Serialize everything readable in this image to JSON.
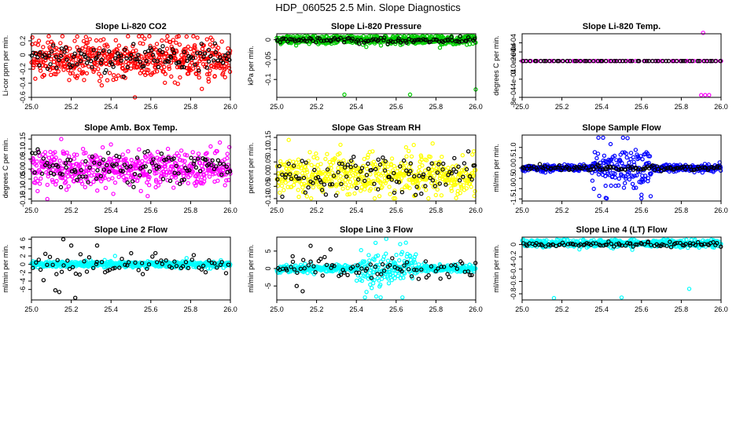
{
  "figure": {
    "title": "HDP_060525  2.5 Min. Slope Diagnostics",
    "background": "#ffffff"
  },
  "chart_data": [
    {
      "type": "scatter",
      "title": "Slope Li-820 CO2",
      "ylabel": "Li-cor ppm per min.",
      "xlim": [
        25.0,
        26.0
      ],
      "ylim": [
        -0.6,
        0.3
      ],
      "xticks": [
        25.0,
        25.2,
        25.4,
        25.6,
        25.8,
        26.0
      ],
      "yticks": [
        -0.6,
        -0.4,
        -0.2,
        0.0,
        0.2
      ],
      "series": [
        {
          "color": "#ff0000",
          "n": 520,
          "center": -0.06,
          "spread": 0.14,
          "outliers": [
            [
              25.52,
              -0.6
            ],
            [
              25.23,
              0.26
            ],
            [
              25.78,
              0.26
            ]
          ]
        },
        {
          "color": "#000000",
          "n": 120,
          "center": -0.05,
          "spread": 0.1,
          "outliers": []
        }
      ]
    },
    {
      "type": "scatter",
      "title": "Slope Li-820 Pressure",
      "ylabel": "kPa per min.",
      "xlim": [
        25.0,
        26.0
      ],
      "ylim": [
        -0.145,
        0.015
      ],
      "xticks": [
        25.0,
        25.2,
        25.4,
        25.6,
        25.8,
        26.0
      ],
      "yticks": [
        -0.1,
        -0.05,
        0.0
      ],
      "series": [
        {
          "color": "#00cc00",
          "n": 520,
          "center": 0.0,
          "spread": 0.006,
          "outliers": [
            [
              25.34,
              -0.138
            ],
            [
              25.67,
              -0.138
            ],
            [
              26.0,
              -0.125
            ],
            [
              25.45,
              -0.018
            ],
            [
              25.82,
              -0.02
            ]
          ]
        },
        {
          "color": "#000000",
          "n": 100,
          "center": -0.001,
          "spread": 0.004,
          "outliers": []
        }
      ]
    },
    {
      "type": "scatter",
      "title": "Slope Li-820 Temp.",
      "ylabel": "degrees C per min.",
      "xlim": [
        25.0,
        26.0
      ],
      "ylim": [
        -0.0008,
        0.0006
      ],
      "xticks": [
        25.0,
        25.2,
        25.4,
        25.6,
        25.8,
        26.0
      ],
      "yticks": [
        -0.0008,
        -0.0004,
        0.0,
        0.0002,
        0.0004
      ],
      "ytick_labels": [
        "-8e-04",
        "-4e-04",
        "0.0e+00",
        "2e-04",
        "4e-04"
      ],
      "series": [
        {
          "color": "#ff00ff",
          "n": 70,
          "center": 0.0,
          "spread": 0.0,
          "outliers": [
            [
              25.0,
              0.0
            ],
            [
              25.9,
              -0.00075
            ],
            [
              25.92,
              -0.00075
            ],
            [
              25.94,
              -0.00075
            ],
            [
              25.91,
              0.00062
            ]
          ]
        },
        {
          "color": "#000000",
          "n": 60,
          "center": 0.0,
          "spread": 0.0,
          "outliers": []
        }
      ]
    },
    {
      "type": "scatter",
      "title": "Slope Amb. Box Temp.",
      "ylabel": "degrees C per min.",
      "xlim": [
        25.0,
        26.0
      ],
      "ylim": [
        -0.16,
        0.17
      ],
      "xticks": [
        25.0,
        25.2,
        25.4,
        25.6,
        25.8,
        26.0
      ],
      "yticks": [
        -0.15,
        -0.1,
        -0.05,
        0.0,
        0.05,
        0.1,
        0.15
      ],
      "ytick_labels": [
        "-0.15",
        "-0.10",
        "-0.05",
        "0.00",
        "0.05",
        "0.10",
        "0.15"
      ],
      "series": [
        {
          "color": "#ff00ff",
          "n": 520,
          "center": 0.0,
          "spread": 0.045,
          "outliers": [
            [
              25.15,
              0.15
            ],
            [
              25.08,
              -0.15
            ],
            [
              25.55,
              -0.11
            ]
          ]
        },
        {
          "color": "#000000",
          "n": 110,
          "center": 0.01,
          "spread": 0.04,
          "outliers": []
        }
      ]
    },
    {
      "type": "scatter",
      "title": "Slope Gas Stream RH",
      "ylabel": "percent per min.",
      "xlim": [
        25.0,
        26.0
      ],
      "ylim": [
        -0.11,
        0.16
      ],
      "xticks": [
        25.0,
        25.2,
        25.4,
        25.6,
        25.8,
        26.0
      ],
      "yticks": [
        -0.1,
        -0.05,
        0.0,
        0.05,
        0.1,
        0.15
      ],
      "ytick_labels": [
        "-0.10",
        "-0.05",
        "0.00",
        "0.05",
        "0.10",
        "0.15"
      ],
      "series": [
        {
          "color": "#ffff00",
          "n": 520,
          "center": -0.005,
          "spread": 0.04,
          "outliers": [
            [
              25.06,
              0.14
            ],
            [
              25.32,
              0.12
            ],
            [
              25.65,
              0.11
            ]
          ]
        },
        {
          "color": "#000000",
          "n": 110,
          "center": -0.005,
          "spread": 0.04,
          "outliers": []
        }
      ]
    },
    {
      "type": "scatter",
      "title": "Slope Sample Flow",
      "ylabel": "ml/min per min.",
      "xlim": [
        25.0,
        26.0
      ],
      "ylim": [
        -1.6,
        1.6
      ],
      "xticks": [
        25.0,
        25.2,
        25.4,
        25.6,
        25.8,
        26.0
      ],
      "yticks": [
        -1.5,
        -1.0,
        -0.5,
        0.0,
        0.5,
        1.0
      ],
      "ytick_labels": [
        "-1.5",
        "-1.0",
        "-0.5",
        "0.0",
        "0.5",
        "1.0"
      ],
      "series": [
        {
          "color": "#0000ff",
          "n": 520,
          "center": 0.0,
          "spread": 0.08,
          "burst": {
            "x": [
              25.35,
              25.65
            ],
            "spread": 0.7
          },
          "outliers": [
            [
              25.53,
              1.45
            ],
            [
              25.42,
              -1.45
            ],
            [
              25.6,
              -1.3
            ]
          ]
        },
        {
          "color": "#000000",
          "n": 110,
          "center": 0.0,
          "spread": 0.06,
          "outliers": []
        }
      ]
    },
    {
      "type": "scatter",
      "title": "Slope Line 2 Flow",
      "ylabel": "ml/min per min.",
      "xlim": [
        25.0,
        26.0
      ],
      "ylim": [
        -8.5,
        6.5
      ],
      "xticks": [
        25.0,
        25.2,
        25.4,
        25.6,
        25.8,
        26.0
      ],
      "yticks": [
        -6,
        -4,
        -2,
        0,
        2,
        4,
        6
      ],
      "series": [
        {
          "color": "#00ffff",
          "n": 520,
          "center": 0.0,
          "spread": 0.35,
          "outliers": [
            [
              25.42,
              2.0
            ],
            [
              25.78,
              1.5
            ],
            [
              25.9,
              -1.0
            ]
          ]
        },
        {
          "color": "#000000",
          "n": 70,
          "center": 0.0,
          "spread": 1.4,
          "outliers": [
            [
              25.12,
              -6.2
            ],
            [
              25.14,
              -6.6
            ],
            [
              25.22,
              -8.0
            ],
            [
              25.16,
              6.0
            ],
            [
              25.2,
              4.5
            ],
            [
              25.33,
              4.5
            ],
            [
              25.07,
              2.5
            ]
          ]
        }
      ]
    },
    {
      "type": "scatter",
      "title": "Slope Line 3 Flow",
      "ylabel": "ml/min per min.",
      "xlim": [
        25.0,
        26.0
      ],
      "ylim": [
        -9,
        9
      ],
      "xticks": [
        25.0,
        25.2,
        25.4,
        25.6,
        25.8,
        26.0
      ],
      "yticks": [
        -5,
        0,
        5
      ],
      "series": [
        {
          "color": "#00ffff",
          "n": 520,
          "center": 0.0,
          "spread": 0.5,
          "burst": {
            "x": [
              25.4,
              25.7
            ],
            "spread": 3.0
          },
          "outliers": [
            [
              25.5,
              -8.0
            ],
            [
              25.55,
              8.5
            ],
            [
              25.62,
              7.0
            ]
          ]
        },
        {
          "color": "#000000",
          "n": 80,
          "center": 0.0,
          "spread": 1.6,
          "outliers": [
            [
              25.13,
              -6.5
            ],
            [
              25.1,
              -5.0
            ],
            [
              25.17,
              6.5
            ],
            [
              25.27,
              5.5
            ],
            [
              25.08,
              3.5
            ]
          ]
        }
      ]
    },
    {
      "type": "scatter",
      "title": "Slope Line 4 (LT) Flow",
      "ylabel": "ml/min per min.",
      "xlim": [
        25.0,
        26.0
      ],
      "ylim": [
        -0.9,
        0.12
      ],
      "xticks": [
        25.0,
        25.2,
        25.4,
        25.6,
        25.8,
        26.0
      ],
      "yticks": [
        -0.8,
        -0.6,
        -0.4,
        -0.2,
        0.0
      ],
      "series": [
        {
          "color": "#00ffff",
          "n": 520,
          "center": 0.02,
          "spread": 0.03,
          "outliers": [
            [
              25.16,
              -0.87
            ],
            [
              25.5,
              -0.86
            ],
            [
              25.84,
              -0.72
            ]
          ]
        },
        {
          "color": "#000000",
          "n": 90,
          "center": 0.0,
          "spread": 0.02,
          "outliers": []
        }
      ]
    }
  ]
}
